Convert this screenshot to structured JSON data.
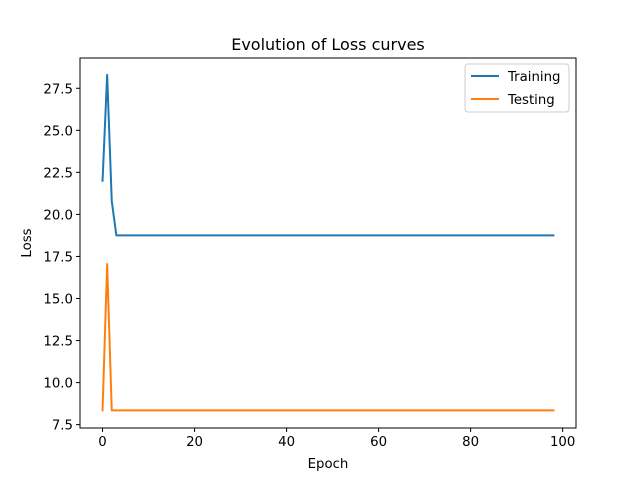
{
  "chart_data": {
    "type": "line",
    "title": "Evolution of Loss curves",
    "xlabel": "Epoch",
    "ylabel": "Loss",
    "xlim": [
      -4.9,
      102.9
    ],
    "ylim": [
      7.3,
      29.3
    ],
    "xticks": [
      0,
      20,
      40,
      60,
      80,
      100
    ],
    "yticks": [
      7.5,
      10.0,
      12.5,
      15.0,
      17.5,
      20.0,
      22.5,
      25.0,
      27.5
    ],
    "ytick_labels": [
      "7.5",
      "10.0",
      "12.5",
      "15.0",
      "17.5",
      "20.0",
      "22.5",
      "25.0",
      "27.5"
    ],
    "grid": false,
    "legend_position": "top-right",
    "series": [
      {
        "name": "Training",
        "color": "#1f77b4",
        "points": [
          [
            0,
            22.0
          ],
          [
            1,
            28.3
          ],
          [
            2,
            20.8
          ],
          [
            3,
            18.75
          ],
          [
            98,
            18.75
          ]
        ]
      },
      {
        "name": "Testing",
        "color": "#ff7f0e",
        "points": [
          [
            0,
            8.35
          ],
          [
            1,
            17.05
          ],
          [
            2,
            8.35
          ],
          [
            98,
            8.35
          ]
        ]
      }
    ]
  }
}
